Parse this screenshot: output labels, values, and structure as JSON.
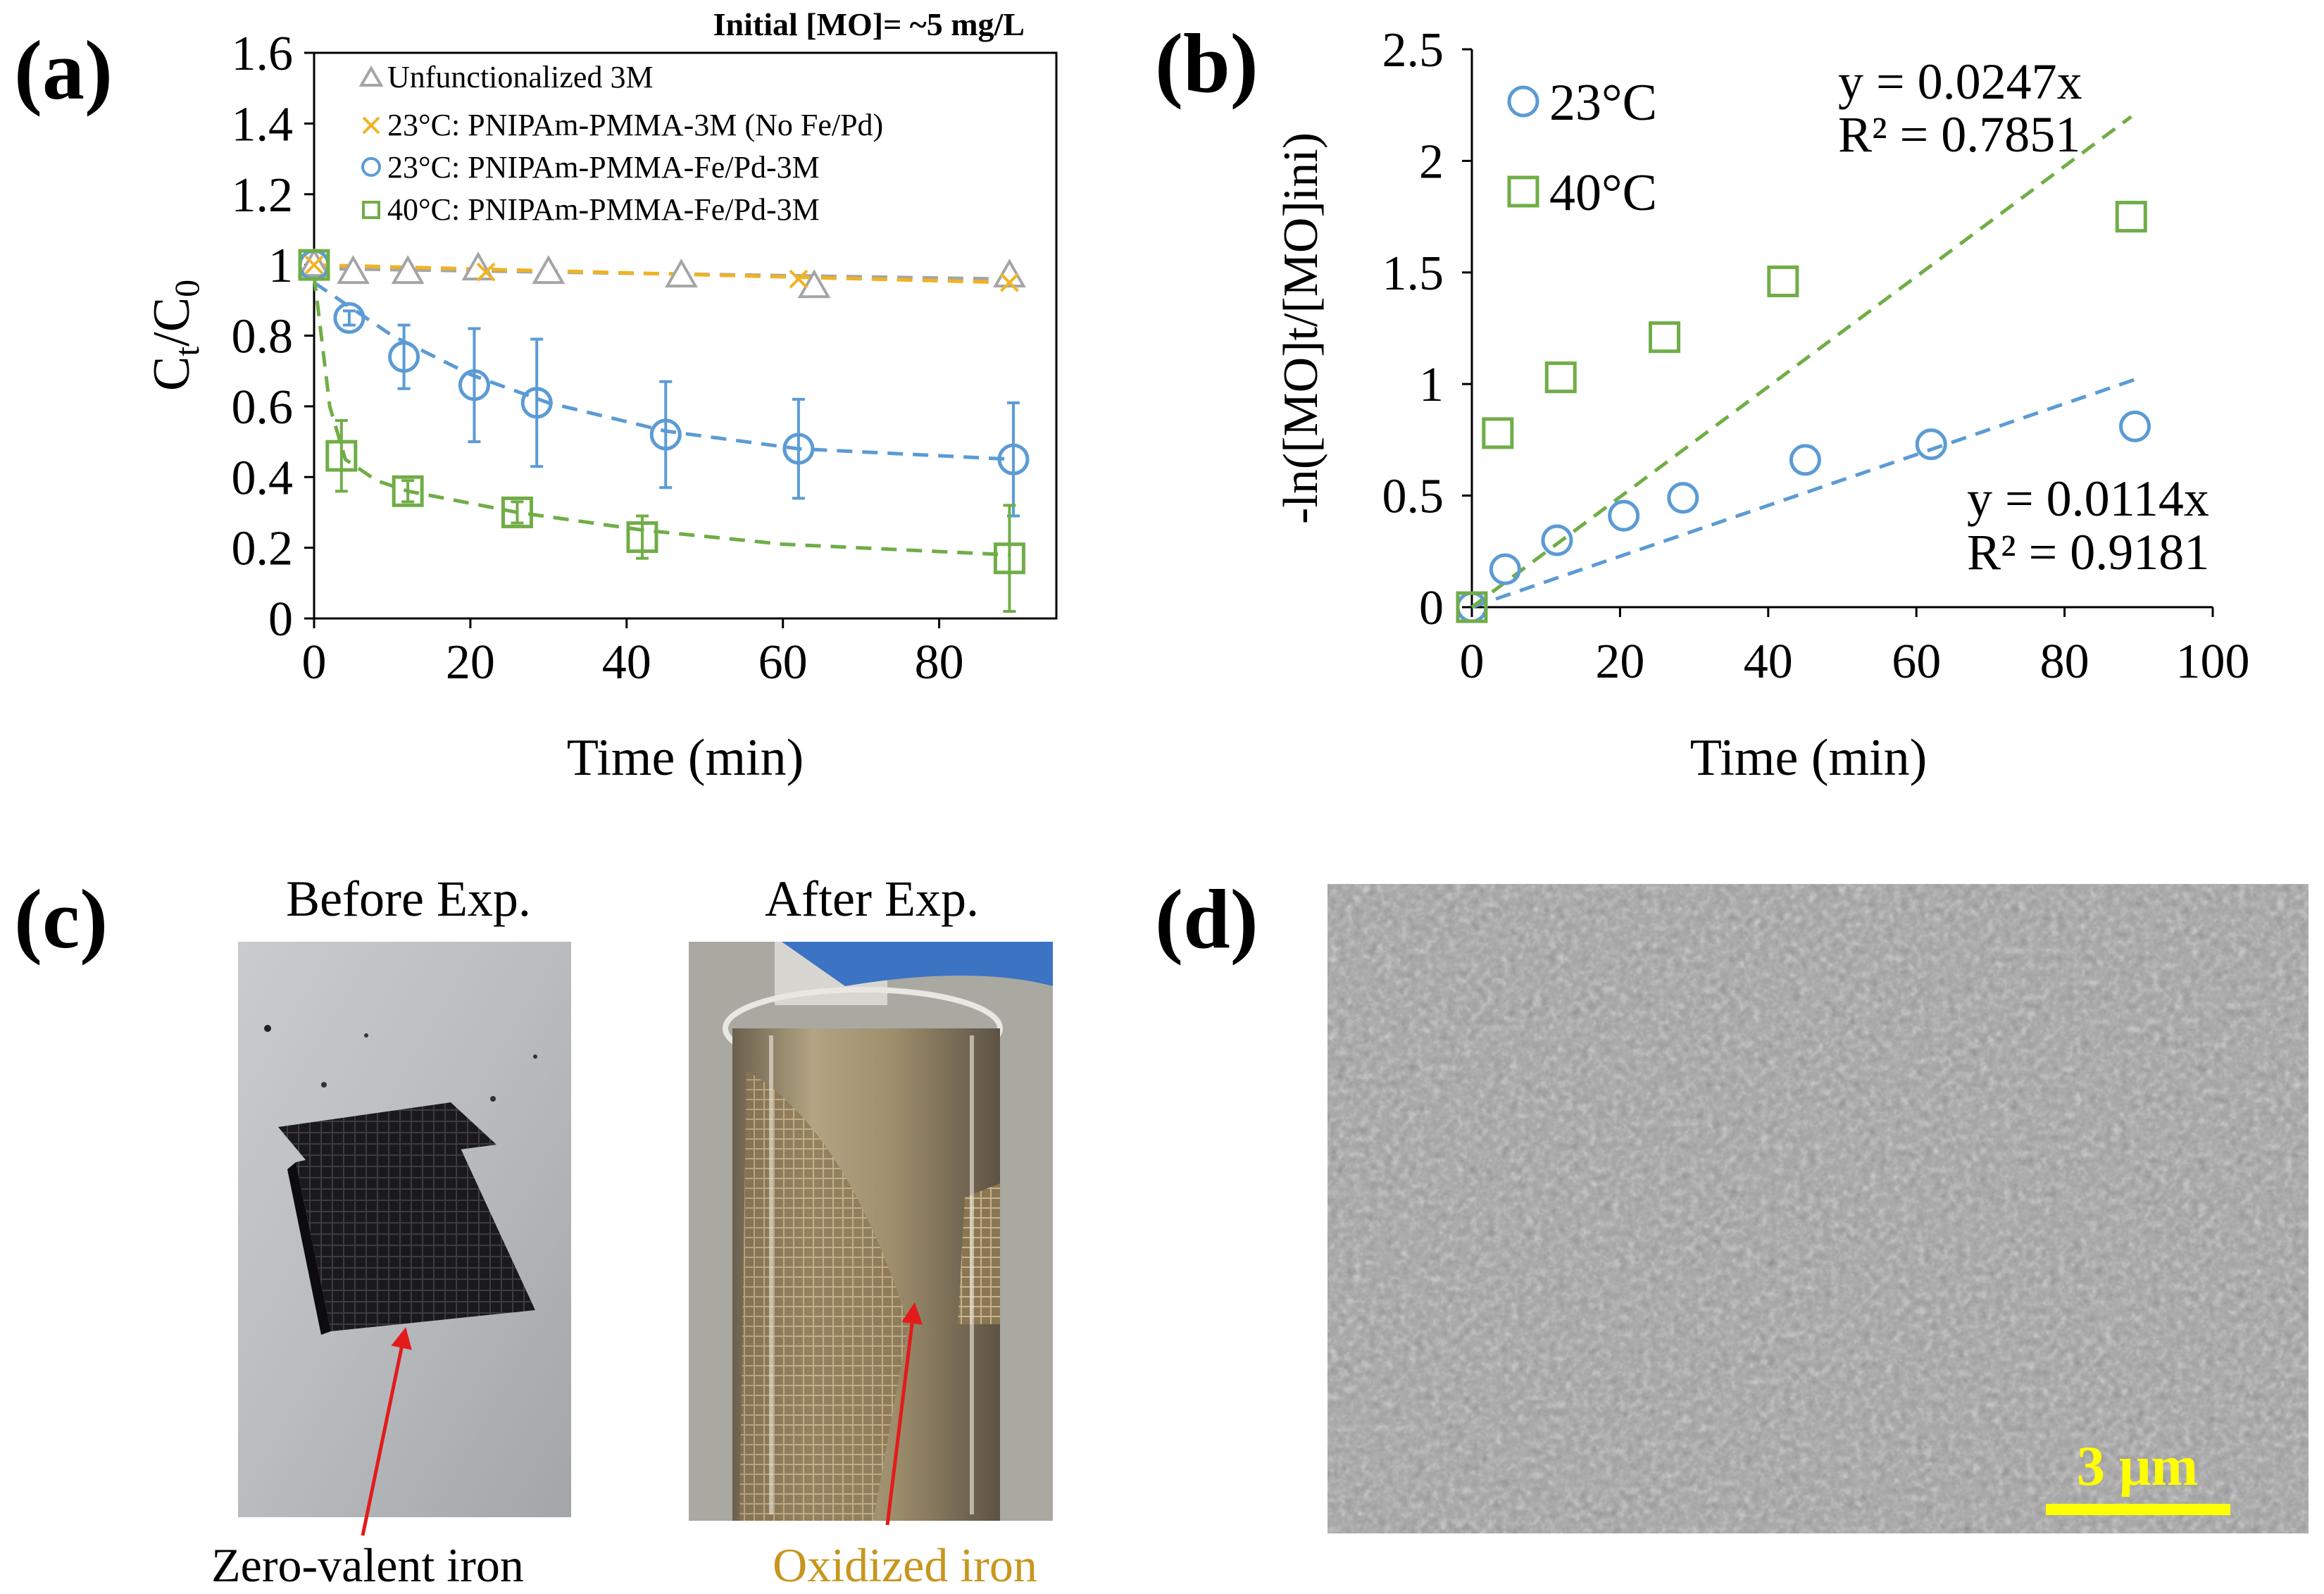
{
  "panels": {
    "a": {
      "label": "(a)",
      "note": "Initial [MO]= ~5 mg/L",
      "xlabel": "Time (min)",
      "ylabel_main": "C",
      "ylabel_sub1": "t",
      "ylabel_slash": "/C",
      "ylabel_sub2": "0",
      "y_ticks": [
        "0",
        "0.2",
        "0.4",
        "0.6",
        "0.8",
        "1",
        "1.2",
        "1.4",
        "1.6"
      ],
      "x_ticks": [
        "0",
        "20",
        "40",
        "60",
        "80"
      ],
      "legend": [
        {
          "label": "Unfunctionalized 3M",
          "marker": "triangle",
          "color": "#a5a5a5"
        },
        {
          "label": "23°C: PNIPAm-PMMA-3M (No Fe/Pd)",
          "marker": "x",
          "color": "#f0b323"
        },
        {
          "label": "23°C: PNIPAm-PMMA-Fe/Pd-3M",
          "marker": "circle",
          "color": "#5b9bd5"
        },
        {
          "label": "40°C: PNIPAm-PMMA-Fe/Pd-3M",
          "marker": "square",
          "color": "#70ad47"
        }
      ]
    },
    "b": {
      "label": "(b)",
      "xlabel": "Time (min)",
      "ylabel": "-ln([MO]t/[MO]ini)",
      "y_ticks": [
        "0",
        "0.5",
        "1",
        "1.5",
        "2",
        "2.5"
      ],
      "x_ticks": [
        "0",
        "20",
        "40",
        "60",
        "80",
        "100"
      ],
      "legend": [
        {
          "label": "23°C",
          "marker": "circle",
          "color": "#5b9bd5"
        },
        {
          "label": "40°C",
          "marker": "square",
          "color": "#70ad47"
        }
      ],
      "fit_40_eq": "y = 0.0247x",
      "fit_40_r2": "R² = 0.7851",
      "fit_23_eq": "y = 0.0114x",
      "fit_23_r2": "R² = 0.9181"
    },
    "c": {
      "label": "(c)",
      "before_title": "Before Exp.",
      "after_title": "After Exp.",
      "before_caption": "Zero-valent iron",
      "after_caption": "Oxidized iron",
      "after_caption_color": "#c8961e"
    },
    "d": {
      "label": "(d)",
      "scale_bar": "3 μm",
      "scale_color": "#ffff00"
    }
  },
  "chart_data": [
    {
      "type": "scatter",
      "title": "",
      "xlabel": "Time (min)",
      "ylabel": "Ct/C0",
      "xlim": [
        0,
        95
      ],
      "ylim": [
        0,
        1.6
      ],
      "grid": false,
      "series": [
        {
          "name": "Unfunctionalized 3M",
          "color": "#a5a5a5",
          "x": [
            0,
            5,
            12,
            21,
            30,
            47,
            64,
            89
          ],
          "y": [
            1.0,
            0.98,
            0.98,
            0.99,
            0.98,
            0.97,
            0.94,
            0.97
          ],
          "fit": [
            [
              0,
              0.99
            ],
            [
              89,
              0.96
            ]
          ]
        },
        {
          "name": "23°C: PNIPAm-PMMA-3M (No Fe/Pd)",
          "color": "#f0b323",
          "x": [
            0,
            22,
            62,
            89
          ],
          "y": [
            1.0,
            0.98,
            0.96,
            0.95
          ],
          "fit": [
            [
              0,
              1.0
            ],
            [
              89,
              0.95
            ]
          ]
        },
        {
          "name": "23°C: PNIPAm-PMMA-Fe/Pd-3M",
          "color": "#5b9bd5",
          "x": [
            0,
            4.5,
            11.5,
            20.5,
            28.5,
            45,
            62,
            89.5
          ],
          "y": [
            1.0,
            0.85,
            0.74,
            0.66,
            0.61,
            0.52,
            0.48,
            0.45
          ],
          "err": [
            0,
            0.02,
            0.09,
            0.16,
            0.18,
            0.15,
            0.14,
            0.16
          ],
          "fit": [
            [
              0,
              0.95
            ],
            [
              10,
              0.8
            ],
            [
              20,
              0.69
            ],
            [
              30,
              0.61
            ],
            [
              45,
              0.53
            ],
            [
              62,
              0.48
            ],
            [
              89.5,
              0.45
            ]
          ]
        },
        {
          "name": "40°C: PNIPAm-PMMA-Fe/Pd-3M",
          "color": "#70ad47",
          "x": [
            0,
            3.5,
            12,
            26,
            42,
            89
          ],
          "y": [
            1.0,
            0.46,
            0.36,
            0.3,
            0.23,
            0.17
          ],
          "err": [
            0,
            0.1,
            0.03,
            0.03,
            0.06,
            0.15
          ],
          "fit": [
            [
              0,
              0.97
            ],
            [
              2,
              0.6
            ],
            [
              4,
              0.45
            ],
            [
              8,
              0.39
            ],
            [
              12,
              0.36
            ],
            [
              26,
              0.3
            ],
            [
              42,
              0.25
            ],
            [
              60,
              0.21
            ],
            [
              89,
              0.18
            ]
          ]
        }
      ]
    },
    {
      "type": "scatter",
      "title": "",
      "xlabel": "Time (min)",
      "ylabel": "-ln([MO]t/[MO]ini)",
      "xlim": [
        0,
        100
      ],
      "ylim": [
        0,
        2.5
      ],
      "grid": false,
      "series": [
        {
          "name": "23°C",
          "color": "#5b9bd5",
          "x": [
            0,
            4.5,
            11.5,
            20.5,
            28.5,
            45,
            62,
            89.5
          ],
          "y": [
            0,
            0.17,
            0.3,
            0.41,
            0.49,
            0.66,
            0.73,
            0.81
          ],
          "fit_slope": 0.0114,
          "fit_r2": 0.9181
        },
        {
          "name": "40°C",
          "color": "#70ad47",
          "x": [
            0,
            3.5,
            12,
            26,
            42,
            89
          ],
          "y": [
            0,
            0.78,
            1.03,
            1.21,
            1.46,
            1.75
          ],
          "fit_slope": 0.0247,
          "fit_r2": 0.7851
        }
      ]
    }
  ]
}
